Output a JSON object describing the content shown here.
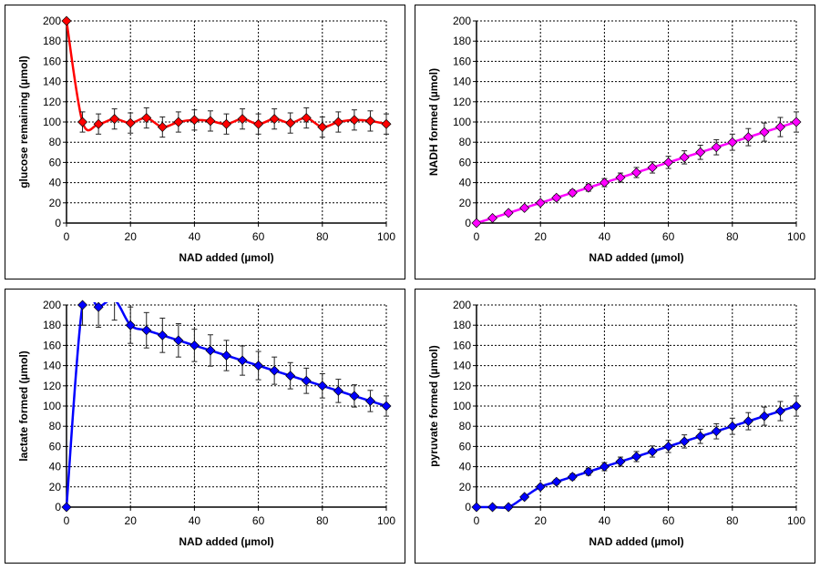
{
  "chart_data": [
    {
      "type": "line",
      "xlabel": "NAD added (µmol)",
      "ylabel": "glucose remaining (µmol)",
      "xlim": [
        0,
        100
      ],
      "ylim": [
        0,
        200
      ],
      "xticks": [
        "0",
        "20",
        "40",
        "60",
        "80",
        "100"
      ],
      "yticks": [
        "0",
        "20",
        "40",
        "60",
        "80",
        "100",
        "120",
        "140",
        "160",
        "180",
        "200"
      ],
      "grid": true,
      "smooth": true,
      "color": "#ff0000",
      "x": [
        0,
        5,
        10,
        15,
        20,
        25,
        30,
        35,
        40,
        45,
        50,
        55,
        60,
        65,
        70,
        75,
        80,
        85,
        90,
        95,
        100
      ],
      "values": [
        200,
        100,
        98,
        103,
        99,
        104,
        95,
        100,
        102,
        101,
        98,
        103,
        98,
        103,
        99,
        104,
        95,
        100,
        102,
        101,
        98
      ],
      "errors": [
        0,
        10,
        10,
        10,
        10,
        10,
        10,
        10,
        10,
        10,
        10,
        10,
        10,
        10,
        10,
        10,
        10,
        10,
        10,
        10,
        10
      ]
    },
    {
      "type": "line",
      "xlabel": "NAD added (µmol)",
      "ylabel": "NADH formed (µmol)",
      "xlim": [
        0,
        100
      ],
      "ylim": [
        0,
        200
      ],
      "xticks": [
        "0",
        "20",
        "40",
        "60",
        "80",
        "100"
      ],
      "yticks": [
        "0",
        "20",
        "40",
        "60",
        "80",
        "100",
        "120",
        "140",
        "160",
        "180",
        "200"
      ],
      "grid": true,
      "smooth": true,
      "color": "#ff00ff",
      "x": [
        0,
        5,
        10,
        15,
        20,
        25,
        30,
        35,
        40,
        45,
        50,
        55,
        60,
        65,
        70,
        75,
        80,
        85,
        90,
        95,
        100
      ],
      "values": [
        0,
        5,
        10,
        15,
        20,
        25,
        30,
        35,
        40,
        45,
        50,
        55,
        60,
        65,
        70,
        75,
        80,
        85,
        90,
        95,
        100
      ],
      "errors": [
        0,
        0.5,
        1,
        1.5,
        2,
        2.5,
        3,
        3.5,
        4,
        4.5,
        5,
        5.5,
        6,
        6.5,
        7,
        7.5,
        8,
        8.5,
        9,
        9.5,
        10
      ]
    },
    {
      "type": "line",
      "xlabel": "NAD added (µmol)",
      "ylabel": "lactate formed (µmol)",
      "xlim": [
        0,
        100
      ],
      "ylim": [
        0,
        200
      ],
      "xticks": [
        "0",
        "20",
        "40",
        "60",
        "80",
        "100"
      ],
      "yticks": [
        "0",
        "20",
        "40",
        "60",
        "80",
        "100",
        "120",
        "140",
        "160",
        "180",
        "200"
      ],
      "grid": true,
      "smooth": true,
      "color": "#0000ff",
      "x": [
        0,
        5,
        10,
        15,
        20,
        25,
        30,
        35,
        40,
        45,
        50,
        55,
        60,
        65,
        70,
        75,
        80,
        85,
        90,
        95,
        100
      ],
      "values": [
        0,
        200,
        198,
        205,
        180,
        175,
        170,
        165,
        160,
        155,
        150,
        145,
        140,
        135,
        130,
        125,
        120,
        115,
        110,
        105,
        100
      ],
      "errors": [
        0,
        20,
        20,
        20,
        18,
        17.5,
        17,
        16.5,
        16,
        15.5,
        15,
        14.5,
        14,
        13.5,
        13,
        12.5,
        12,
        11.5,
        11,
        10.5,
        10
      ]
    },
    {
      "type": "line",
      "xlabel": "NAD added (µmol)",
      "ylabel": "pyruvate formed (µmol)",
      "xlim": [
        0,
        100
      ],
      "ylim": [
        0,
        200
      ],
      "xticks": [
        "0",
        "20",
        "40",
        "60",
        "80",
        "100"
      ],
      "yticks": [
        "0",
        "20",
        "40",
        "60",
        "80",
        "100",
        "120",
        "140",
        "160",
        "180",
        "200"
      ],
      "grid": true,
      "smooth": true,
      "color": "#0000ff",
      "x": [
        0,
        5,
        10,
        15,
        20,
        25,
        30,
        35,
        40,
        45,
        50,
        55,
        60,
        65,
        70,
        75,
        80,
        85,
        90,
        95,
        100
      ],
      "values": [
        0,
        0,
        0,
        10,
        20,
        25,
        30,
        35,
        40,
        45,
        50,
        55,
        60,
        65,
        70,
        75,
        80,
        85,
        90,
        95,
        100
      ],
      "errors": [
        0,
        0,
        0,
        1,
        2,
        2.5,
        3,
        3.5,
        4,
        4.5,
        5,
        5.5,
        6,
        6.5,
        7,
        7.5,
        8,
        8.5,
        9,
        9.5,
        10
      ]
    }
  ]
}
